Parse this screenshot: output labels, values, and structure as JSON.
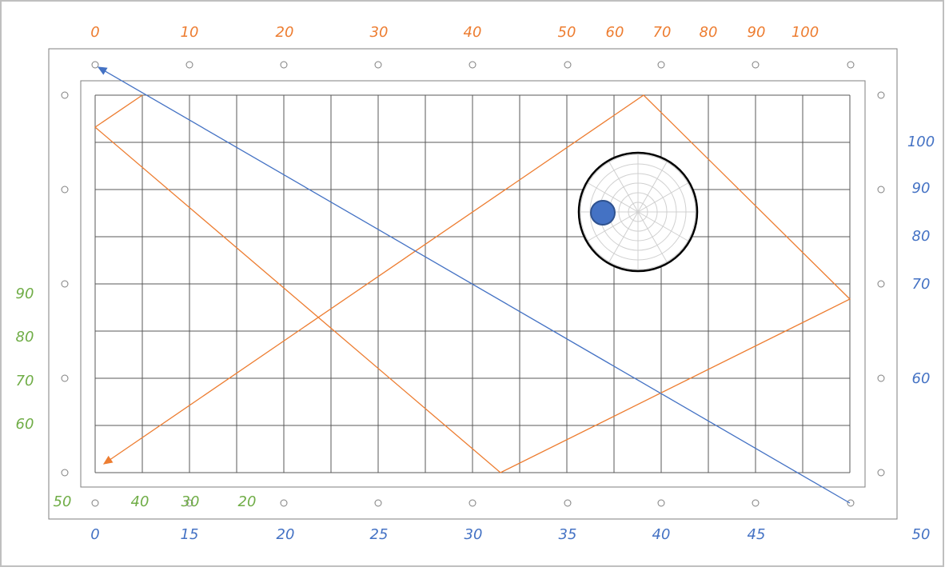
{
  "scales": {
    "top": [
      "0",
      "10",
      "20",
      "30",
      "40",
      "50",
      "60",
      "70",
      "80",
      "90",
      "100"
    ],
    "bottom": [
      "0",
      "15",
      "20",
      "25",
      "30",
      "35",
      "40",
      "45",
      "50"
    ],
    "right": [
      "100",
      "90",
      "80",
      "70",
      "60"
    ],
    "left": [
      "90",
      "80",
      "70",
      "60"
    ],
    "bottom_left": [
      "50",
      "40",
      "30",
      "20"
    ]
  }
}
